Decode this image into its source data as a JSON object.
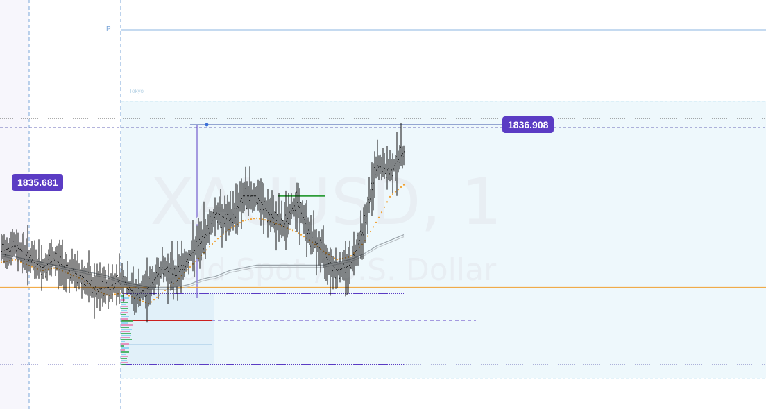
{
  "chart_data": {
    "type": "candlestick",
    "symbol": "XAUUSD, 1",
    "description": "Gold Spot / U.S. Dollar",
    "session_label": "Tokyo",
    "pivot_label": "P",
    "price_tags": [
      {
        "label": "1836.908",
        "value": 1836.908,
        "color": "#5b3cc4"
      },
      {
        "label": "1835.681",
        "value": 1835.681,
        "color": "#5b3cc4"
      }
    ],
    "series": [
      {
        "name": "price",
        "values": [
          1832.2,
          1832.4,
          1832.0,
          1831.6,
          1831.9,
          1831.5,
          1831.3,
          1830.8,
          1830.9,
          1831.2,
          1830.6,
          1830.9,
          1831.6,
          1831.3,
          1832.0,
          1832.6,
          1833.6,
          1833.3,
          1834.2,
          1834.2,
          1833.5,
          1833.1,
          1834.0,
          1832.8,
          1832.1,
          1831.5,
          1831.7,
          1833.0,
          1835.3,
          1835.1,
          1835.8
        ]
      },
      {
        "name": "ma_fast",
        "values": [
          1831.8,
          1831.9,
          1831.7,
          1831.5,
          1831.6,
          1831.4,
          1831.2,
          1830.8,
          1830.6,
          1830.7,
          1830.5,
          1830.3,
          1830.7,
          1831.1,
          1831.6,
          1832.1,
          1832.6,
          1833.0,
          1833.3,
          1833.4,
          1833.3,
          1833.1,
          1832.9,
          1832.6,
          1832.2,
          1831.9,
          1832.0,
          1832.5,
          1833.3,
          1834.2,
          1834.6
        ]
      },
      {
        "name": "ma_slow",
        "values": [
          1832.1,
          1832.0,
          1831.9,
          1831.8,
          1831.7,
          1831.6,
          1831.5,
          1831.4,
          1831.3,
          1831.1,
          1831.0,
          1830.9,
          1830.9,
          1830.9,
          1831.0,
          1831.2,
          1831.3,
          1831.5,
          1831.6,
          1831.7,
          1831.7,
          1831.7,
          1831.7,
          1831.7,
          1831.7,
          1831.8,
          1831.9,
          1832.1,
          1832.4,
          1832.6,
          1832.8
        ]
      }
    ],
    "horizontal_levels": [
      {
        "name": "orange-level",
        "value": 1830.9,
        "color": "#f0a030"
      },
      {
        "name": "green-level",
        "value": 1834.2,
        "color": "#2e9e3a"
      }
    ],
    "colors": {
      "candle": "#111111",
      "ma_fast": "#f0a030",
      "ma_slow": "#9aa3aa",
      "accent": "#5b3cc4",
      "session_fill": "#e6f4fb"
    }
  }
}
